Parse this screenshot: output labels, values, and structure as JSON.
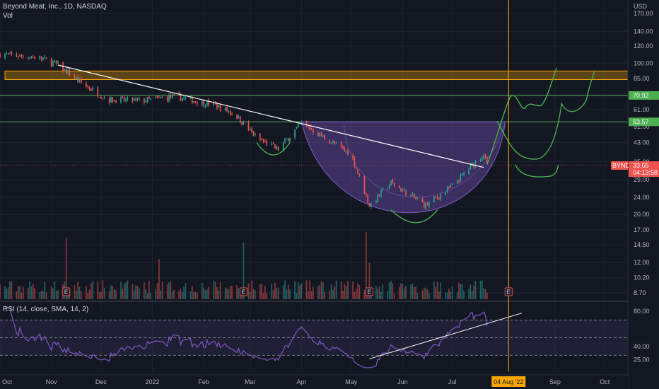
{
  "header": {
    "title": "Beyond Meat, Inc., 1D, NASDAQ",
    "volume_label": "Vol",
    "rsi_label": "RSI (14, close, SMA, 14, 2)",
    "currency": "USD"
  },
  "price_axis": {
    "ticks": [
      "170.00",
      "140.00",
      "120.00",
      "100.00",
      "85.00",
      "72.00",
      "61.00",
      "51.00",
      "43.00",
      "35.00",
      "29.00",
      "24.00",
      "20.00",
      "17.00",
      "14.50",
      "12.00",
      "10.20",
      "8.70"
    ],
    "tick_values": [
      170,
      140,
      120,
      100,
      85,
      72,
      61,
      51,
      43,
      35,
      29,
      24,
      20,
      17,
      14.5,
      12,
      10.2,
      8.7
    ],
    "scale": "log"
  },
  "rsi_axis": {
    "ticks": [
      "80.00",
      "40.00",
      "25.00"
    ],
    "tick_values": [
      80,
      40,
      25
    ]
  },
  "time_axis": {
    "labels": [
      "Oct",
      "Nov",
      "Dec",
      "2022",
      "Feb",
      "Mar",
      "Apr",
      "May",
      "Jun",
      "Jul",
      "Sep",
      "Oct"
    ],
    "cursor_label": "04 Aug '22"
  },
  "price_labels": {
    "level_upper": "70.92",
    "level_lower": "53.57",
    "ticker": "BYND",
    "last_price": "33.65",
    "countdown": "04:13:58"
  },
  "earnings_marker": "E",
  "colors": {
    "up": "#26a69a",
    "down": "#ef5350",
    "trendline": "#ffffff",
    "resistance_zone": "#f7a600",
    "level_line": "#4caf50",
    "cup": "#7e57c2",
    "rsi_line": "#7e57c2",
    "cursor": "#f7a600",
    "projection": "#4caf50"
  },
  "chart_data": {
    "type": "candlestick",
    "title": "Beyond Meat, Inc., 1D, NASDAQ",
    "x_range": [
      "2021-10-01",
      "2022-10-15"
    ],
    "y_scale": "log",
    "y_range": [
      8,
      190
    ],
    "anchors": [
      {
        "date": "2021-10-01",
        "close": 110
      },
      {
        "date": "2021-10-25",
        "close": 106
      },
      {
        "date": "2021-11-05",
        "close": 98
      },
      {
        "date": "2021-11-18",
        "close": 82
      },
      {
        "date": "2021-12-05",
        "close": 68
      },
      {
        "date": "2021-12-25",
        "close": 67
      },
      {
        "date": "2022-01-15",
        "close": 70
      },
      {
        "date": "2022-02-08",
        "close": 64
      },
      {
        "date": "2022-02-20",
        "close": 58
      },
      {
        "date": "2022-03-05",
        "close": 45
      },
      {
        "date": "2022-03-18",
        "close": 40
      },
      {
        "date": "2022-04-01",
        "close": 53
      },
      {
        "date": "2022-04-15",
        "close": 45
      },
      {
        "date": "2022-05-01",
        "close": 38
      },
      {
        "date": "2022-05-12",
        "close": 22
      },
      {
        "date": "2022-05-25",
        "close": 28
      },
      {
        "date": "2022-06-15",
        "close": 22
      },
      {
        "date": "2022-07-01",
        "close": 27
      },
      {
        "date": "2022-07-15",
        "close": 35
      },
      {
        "date": "2022-07-20",
        "close": 38
      },
      {
        "date": "2022-07-22",
        "close": 33.65
      }
    ],
    "resistance_zone": [
      84,
      92
    ],
    "horizontal_levels": [
      70.92,
      53.57
    ],
    "trendline": [
      {
        "date": "2021-11-05",
        "price": 98
      },
      {
        "date": "2022-07-20",
        "price": 33
      }
    ],
    "volume_spikes": [
      {
        "date": "2021-11-10",
        "vol": 0.85
      },
      {
        "date": "2022-01-05",
        "vol": 0.55
      },
      {
        "date": "2022-02-25",
        "vol": 0.78
      },
      {
        "date": "2022-05-10",
        "vol": 0.92
      },
      {
        "date": "2022-05-12",
        "vol": 0.5
      }
    ],
    "earnings_dates": [
      "2021-11-10",
      "2022-02-25",
      "2022-05-12",
      "2022-08-04"
    ],
    "rsi_levels": {
      "upper": 70,
      "middle": 50,
      "lower": 30
    },
    "rsi_trendline": [
      {
        "date": "2022-05-12",
        "rsi": 26
      },
      {
        "date": "2022-08-12",
        "rsi": 78
      }
    ],
    "cursor_date": "2022-08-04"
  }
}
